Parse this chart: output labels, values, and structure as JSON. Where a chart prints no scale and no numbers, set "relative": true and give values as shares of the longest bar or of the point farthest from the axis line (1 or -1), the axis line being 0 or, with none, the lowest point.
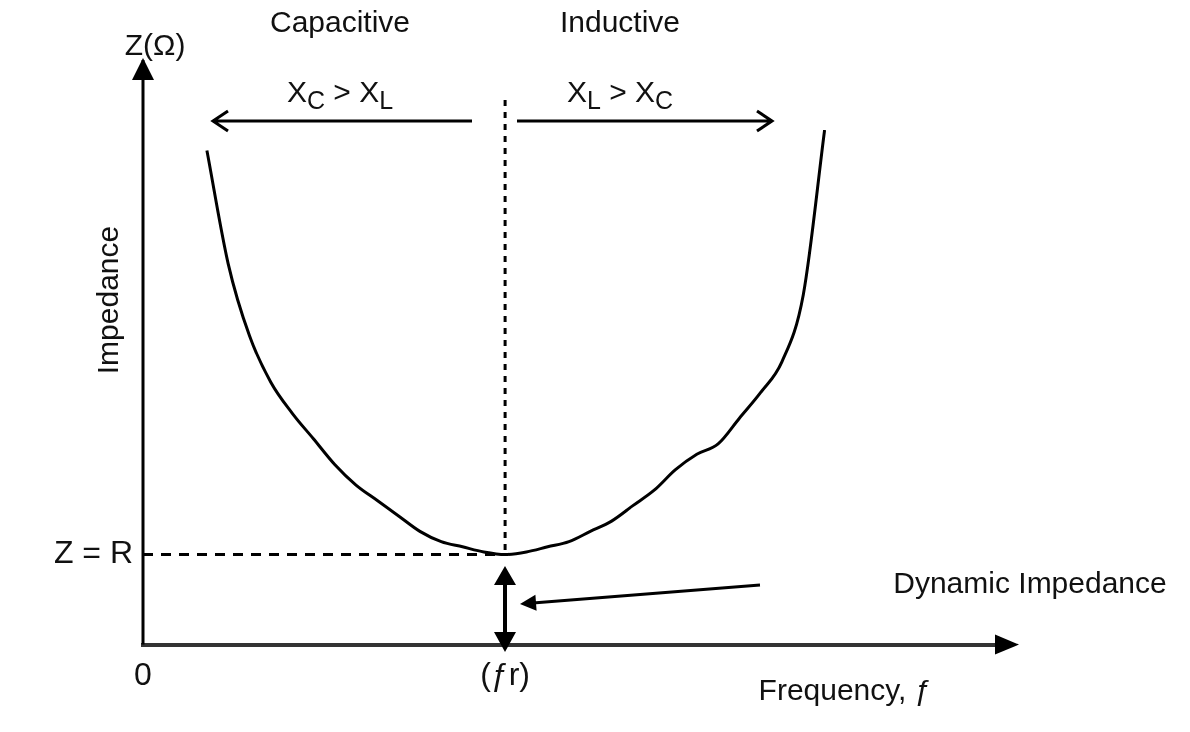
{
  "chart_data": {
    "type": "line",
    "relative": true,
    "xlabel": "Frequency, ƒ",
    "ylabel": "Impedance",
    "categories": [
      "0",
      null,
      null,
      null,
      null,
      null,
      null,
      null,
      null,
      null,
      null,
      null,
      null,
      null,
      null,
      null,
      null,
      "(ƒr)",
      null,
      null,
      null,
      null,
      null,
      null,
      null,
      null,
      null,
      null,
      null,
      null,
      null,
      null,
      null,
      null,
      null,
      null,
      null,
      null,
      null,
      null,
      null
    ],
    "series": [
      {
        "color": "#000000",
        "values": [
          null,
          null,
          null,
          0.96,
          0.74,
          0.6,
          0.51,
          0.45,
          0.4,
          0.35,
          0.31,
          0.28,
          0.25,
          0.22,
          0.2,
          0.19,
          0.18,
          0.175,
          0.18,
          0.19,
          0.2,
          0.22,
          0.24,
          0.27,
          0.3,
          0.34,
          0.37,
          0.39,
          0.44,
          0.49,
          0.55,
          0.68,
          1.0,
          null,
          null,
          null,
          null,
          null,
          null,
          null,
          null
        ]
      }
    ],
    "ref_lines": [
      {
        "axis": "y",
        "value": 0.175,
        "label": "Z = R",
        "line_style": "dashed"
      },
      {
        "axis": "x",
        "value": "(ƒr)",
        "line_style": "dotted"
      }
    ],
    "annotations": [
      "Capacitive",
      "Inductive",
      "X$_{C}$ > X$_{L}$",
      "X$_{L}$ > X$_{C}$",
      "Z(Ω)",
      "Dynamic Impedance"
    ],
    "grid": false,
    "legend": false,
    "marker": "none",
    "line_style": "solid"
  }
}
